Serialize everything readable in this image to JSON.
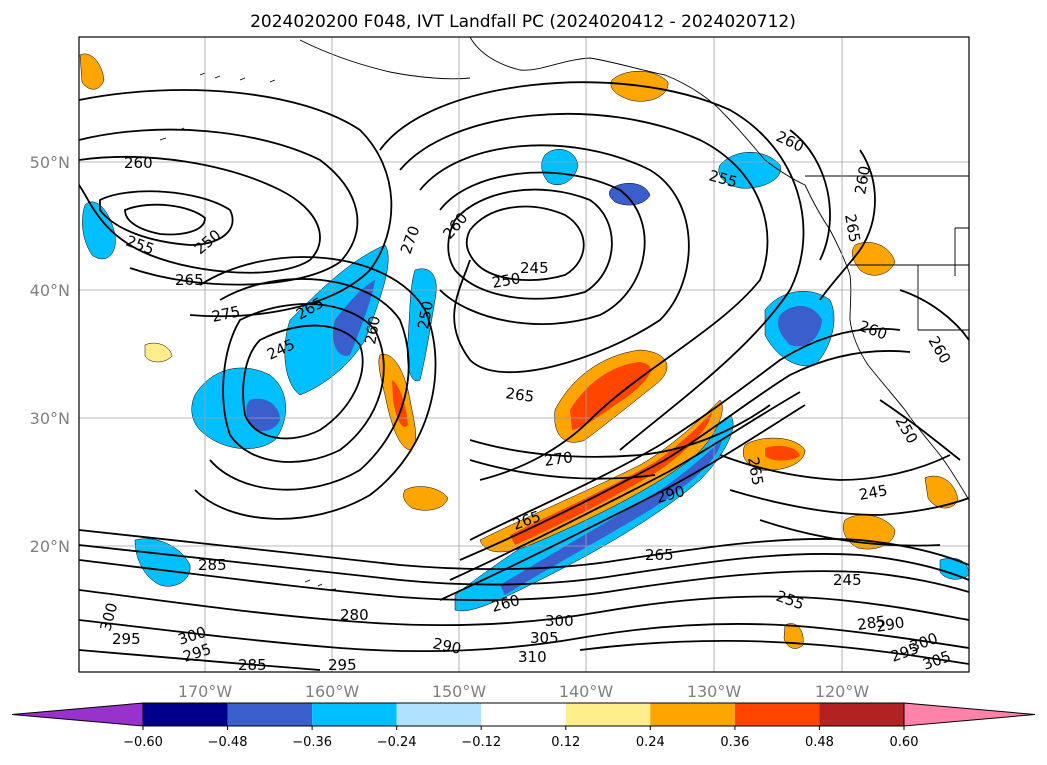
{
  "title": "2024020200 F048, IVT Landfall PC (2024020412 - 2024020712)",
  "map": {
    "lat_labels": [
      "50°N",
      "40°N",
      "30°N",
      "20°N"
    ],
    "lon_labels": [
      "170°W",
      "160°W",
      "150°W",
      "140°W",
      "130°W",
      "120°W"
    ],
    "contour_labels": [
      "260",
      "255",
      "250",
      "265",
      "275",
      "265",
      "245",
      "270",
      "250",
      "260",
      "245",
      "250",
      "265",
      "260",
      "270",
      "290",
      "265",
      "265",
      "285",
      "280",
      "300",
      "295",
      "300",
      "295",
      "285",
      "295",
      "260",
      "290",
      "305",
      "310",
      "300",
      "255",
      "245",
      "285",
      "290",
      "295",
      "300",
      "305",
      "260",
      "255",
      "265",
      "260",
      "260",
      "250",
      "260",
      "265",
      "245"
    ]
  },
  "colorbar": {
    "ticks": [
      "−0.60",
      "−0.48",
      "−0.36",
      "−0.24",
      "−0.12",
      "0.12",
      "0.24",
      "0.36",
      "0.48",
      "0.60"
    ],
    "colors": [
      "#9932cc",
      "#00008b",
      "#3a5fcd",
      "#00bfff",
      "#b0e2ff",
      "#ffffff",
      "#ffec8b",
      "#ffa500",
      "#ff4500",
      "#b22222",
      "#ff82ab"
    ]
  }
}
